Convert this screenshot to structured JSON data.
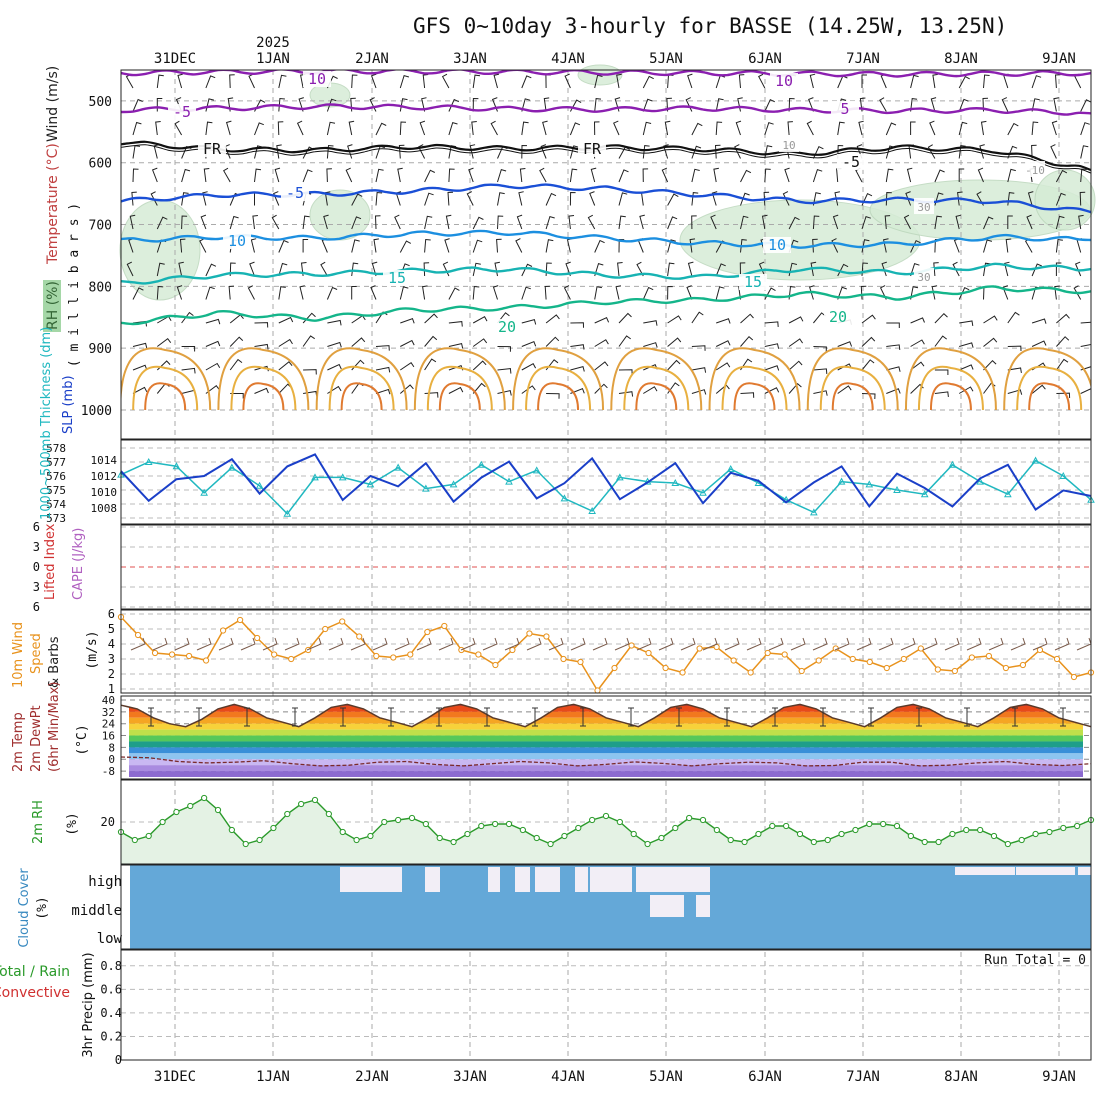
{
  "title": "GFS 0~10day 3-hourly for BASSE (14.25W, 13.25N)",
  "year_label": "2025",
  "date_labels": [
    "31DEC",
    "1JAN",
    "2JAN",
    "3JAN",
    "4JAN",
    "5JAN",
    "6JAN",
    "7JAN",
    "8JAN",
    "9JAN"
  ],
  "chart_data": [
    {
      "type": "line",
      "panel": "upper-air",
      "ylabel_parts": [
        "RH (%)",
        "Temperature (°C)",
        "Wind (m/s)"
      ],
      "axis_label": "( m i l l i b a r s )",
      "y_ticks": [
        500,
        600,
        700,
        800,
        900,
        1000
      ],
      "ylim": [
        450,
        1000
      ],
      "series": [
        {
          "name": "-10",
          "color": "#8b1fb0",
          "values": [
            455,
            453,
            452,
            452,
            453,
            454,
            455,
            456,
            457,
            456,
            455
          ]
        },
        {
          "name": "-5",
          "color": "#8b1fb0",
          "values": [
            515,
            512,
            509,
            510,
            513,
            514,
            512,
            515,
            516,
            515,
            520
          ]
        },
        {
          "name": "FR",
          "color": "#111111",
          "values": [
            567,
            578,
            580,
            574,
            577,
            575,
            578,
            586,
            575,
            580,
            612
          ]
        },
        {
          "name": "-5",
          "color": "#1a4fd6",
          "values": [
            662,
            652,
            651,
            646,
            637,
            642,
            652,
            662,
            660,
            662,
            680
          ]
        },
        {
          "name": "10",
          "color": "#1c8fe0",
          "values": [
            726,
            720,
            722,
            715,
            713,
            722,
            730,
            734,
            732,
            720,
            725
          ]
        },
        {
          "name": "15",
          "color": "#17b3b3",
          "values": [
            795,
            782,
            780,
            775,
            772,
            782,
            785,
            772,
            778,
            767,
            772
          ]
        },
        {
          "name": "20",
          "color": "#14b58a",
          "values": [
            860,
            843,
            852,
            838,
            835,
            825,
            822,
            812,
            818,
            803,
            808
          ]
        }
      ],
      "contour_labels": [
        "10",
        "-5",
        "FR",
        "-5",
        "10",
        "15",
        "20",
        "10",
        "5",
        "FR",
        "10",
        "15",
        "20",
        "30",
        "30",
        "10",
        "-10",
        "-5"
      ]
    },
    {
      "type": "line",
      "panel": "thickness-slp",
      "ylabel": "1000~500mb Thickness (dm)",
      "ylabel2": "SLP (mb)",
      "y_ticks_left": [
        573,
        574,
        575,
        576,
        577,
        578
      ],
      "y_ticks_right": [
        1008,
        1010,
        1012,
        1014
      ],
      "series": [
        {
          "name": "Thickness",
          "color": "#20b8c0",
          "values": [
            576.1,
            577.0,
            576.7,
            574.8,
            576.6,
            575.3,
            573.3,
            575.9,
            575.9,
            575.4,
            576.6,
            575.1,
            575.4,
            576.8,
            575.6,
            576.4,
            574.4,
            573.5,
            575.9,
            575.6,
            575.5,
            574.8,
            576.5,
            575.5,
            574.3,
            573.4,
            575.6,
            575.4,
            575.0,
            574.7,
            576.8,
            575.6,
            574.7,
            577.1,
            576.0,
            574.3
          ]
        },
        {
          "name": "SLP",
          "color": "#1a3fc8",
          "values": [
            1012.6,
            1008.9,
            1011.6,
            1012.0,
            1014.1,
            1009.8,
            1013.2,
            1014.7,
            1009.0,
            1012.0,
            1010.7,
            1013.6,
            1008.8,
            1011.8,
            1013.8,
            1009.2,
            1011.1,
            1014.2,
            1009.1,
            1011.2,
            1013.6,
            1008.6,
            1012.4,
            1011.4,
            1008.7,
            1011.2,
            1013.2,
            1008.2,
            1012.3,
            1010.5,
            1008.2,
            1011.7,
            1013.4,
            1007.8,
            1010.2,
            1009.5
          ]
        }
      ]
    },
    {
      "type": "line",
      "panel": "lifted-cape",
      "ylabel": "Lifted Index",
      "ylabel2": "CAPE (J/kg)",
      "y_ticks": [
        6,
        3,
        0,
        3,
        6
      ],
      "series": []
    },
    {
      "type": "line",
      "panel": "wind10m",
      "ylabel_parts": [
        "10m Wind",
        "Speed",
        "& Barbs"
      ],
      "unit": "(m/s)",
      "y_ticks": [
        1,
        2,
        3,
        4,
        5,
        6
      ],
      "series": [
        {
          "name": "10m Wind Speed",
          "color": "#e8921c",
          "values": [
            5.8,
            4.6,
            3.4,
            3.3,
            3.2,
            2.9,
            4.9,
            5.6,
            4.4,
            3.3,
            3.0,
            3.6,
            5.0,
            5.5,
            4.5,
            3.2,
            3.1,
            3.3,
            4.8,
            5.2,
            3.6,
            3.3,
            2.6,
            3.6,
            4.7,
            4.5,
            3.0,
            2.8,
            0.9,
            2.4,
            3.9,
            3.4,
            2.4,
            2.1,
            3.7,
            3.8,
            2.9,
            2.1,
            3.4,
            3.3,
            2.2,
            2.9,
            3.7,
            3.0,
            2.8,
            2.4,
            3.0,
            3.7,
            2.3,
            2.2,
            3.1,
            3.2,
            2.4,
            2.6,
            3.6,
            3.0,
            1.8,
            2.1
          ]
        }
      ]
    },
    {
      "type": "area",
      "panel": "temperature",
      "ylabel_parts": [
        "2m Temp",
        "2m DewPt",
        "(6hr Min/Max)"
      ],
      "unit": "(°C)",
      "y_ticks": [
        40,
        32,
        24,
        16,
        8,
        0,
        -8
      ],
      "series": [
        {
          "name": "2m Temp",
          "color": "#5a3a2a",
          "values": [
            36.5,
            34,
            28,
            24,
            22,
            27,
            34,
            37,
            34,
            28,
            25,
            22,
            28,
            35,
            37,
            34,
            28,
            25,
            22,
            28,
            35,
            37,
            34,
            28,
            25,
            22,
            28,
            35,
            37,
            34,
            28,
            25,
            22,
            28,
            35,
            37,
            34,
            28,
            25,
            22,
            28,
            35,
            37,
            34,
            28,
            25,
            22,
            28,
            35,
            37,
            34,
            28,
            25,
            22,
            28,
            35,
            37,
            34,
            28,
            25,
            22
          ]
        },
        {
          "name": "2m DewPt",
          "color": "#7a2a2a",
          "values": [
            1.5,
            1.0,
            -1.5,
            -2.5,
            -2.0,
            -1.0,
            -3.0,
            -4.5,
            -4.0,
            -2.0,
            -1.5,
            -3.5,
            -4.5,
            -3.0,
            -1.5,
            -2.5,
            -4.5,
            -3.5,
            -1.8,
            -2.8,
            -4.5,
            -3.0,
            -2.0,
            -2.5,
            -4.5,
            -4.2,
            -2.0,
            -2.0,
            -4.5,
            -4.0,
            -2.5,
            -1.5,
            -3.5,
            -4.2,
            -3.0
          ]
        }
      ]
    },
    {
      "type": "area",
      "panel": "rh2m",
      "ylabel": "2m RH",
      "unit": "(%)",
      "y_ticks": [
        20
      ],
      "series": [
        {
          "name": "2m RH",
          "color": "#2a9a2a",
          "values": [
            15,
            11,
            13,
            20,
            25,
            28,
            32,
            26,
            16,
            9,
            11,
            17,
            24,
            29,
            31,
            24,
            15,
            11,
            13,
            20,
            21,
            22,
            19,
            12,
            10,
            14,
            18,
            19,
            19,
            16,
            12,
            9,
            13,
            17,
            21,
            23,
            20,
            14,
            9,
            12,
            17,
            22,
            21,
            16,
            11,
            10,
            14,
            18,
            18,
            14,
            10,
            11,
            14,
            16,
            19,
            19,
            18,
            13,
            10,
            10,
            14,
            16,
            16,
            13,
            9,
            11,
            14,
            15,
            17,
            18,
            21
          ]
        }
      ]
    },
    {
      "type": "bar",
      "panel": "cloud",
      "ylabel": "Cloud Cover",
      "unit": "(%)",
      "levels": [
        "high",
        "middle",
        "low"
      ],
      "series": []
    },
    {
      "type": "bar",
      "panel": "precip",
      "ylabel": "3hr Precip (mm)",
      "legend": [
        "Total / Rain",
        "Convective"
      ],
      "run_total": "Run Total = 0",
      "y_ticks": [
        0,
        0.2,
        0.4,
        0.6,
        0.8
      ],
      "series": []
    }
  ]
}
